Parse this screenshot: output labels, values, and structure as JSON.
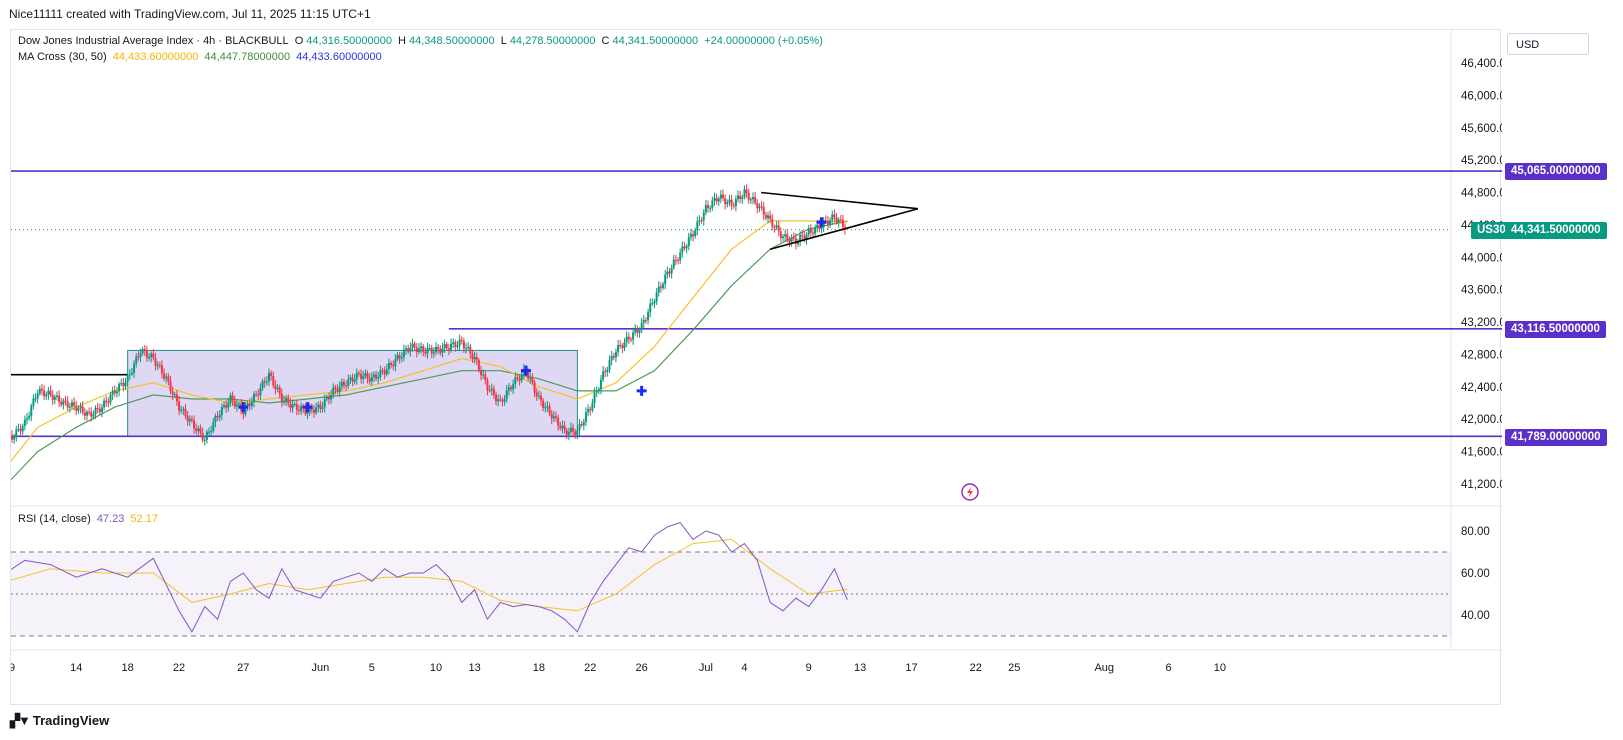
{
  "header": {
    "credit": "Nice11111 created with TradingView.com, Jul 11, 2025 11:15 UTC+1"
  },
  "legend": {
    "symbol_title": "Dow Jones Industrial Average Index · 4h · BLACKBULL",
    "o_label": "O",
    "o_value": "44,316.50000000",
    "h_label": "H",
    "h_value": "44,348.50000000",
    "l_label": "L",
    "l_value": "44,278.50000000",
    "c_label": "C",
    "c_value": "44,341.50000000",
    "change": "+24.00000000 (+0.05%)",
    "ma_title": "MA Cross (30, 50)",
    "ma_v1": "44,433.60000000",
    "ma_v2": "44,447.78000000",
    "ma_v3": "44,433.60000000",
    "rsi_title": "RSI (14, close)",
    "rsi_v1": "47.23",
    "rsi_v2": "52.17"
  },
  "axis": {
    "currency": "USD",
    "price_ticks": [
      "46,400.00000000",
      "46,000.00000000",
      "45,600.00000000",
      "45,200.00000000",
      "44,800.00000000",
      "44,400.00000000",
      "44,000.00000000",
      "43,600.00000000",
      "43,200.00000000",
      "42,800.00000000",
      "42,400.00000000",
      "42,000.00000000",
      "41,600.00000000",
      "41,200.00000000"
    ],
    "price_tick_values": [
      46400,
      46000,
      45600,
      45200,
      44800,
      44400,
      44000,
      43600,
      43200,
      42800,
      42400,
      42000,
      41600,
      41200
    ],
    "rsi_ticks": [
      "80.00",
      "60.00",
      "40.00"
    ],
    "rsi_tick_values": [
      80,
      60,
      40
    ],
    "x_labels": [
      {
        "label": "9",
        "d": -24
      },
      {
        "label": "14",
        "d": -19
      },
      {
        "label": "18",
        "d": -15
      },
      {
        "label": "22",
        "d": -11
      },
      {
        "label": "27",
        "d": -6
      },
      {
        "label": "Jun",
        "d": 0
      },
      {
        "label": "5",
        "d": 4
      },
      {
        "label": "10",
        "d": 9
      },
      {
        "label": "13",
        "d": 12
      },
      {
        "label": "18",
        "d": 17
      },
      {
        "label": "22",
        "d": 21
      },
      {
        "label": "26",
        "d": 25
      },
      {
        "label": "Jul",
        "d": 30
      },
      {
        "label": "4",
        "d": 33
      },
      {
        "label": "9",
        "d": 38
      },
      {
        "label": "13",
        "d": 42
      },
      {
        "label": "17",
        "d": 46
      },
      {
        "label": "22",
        "d": 51
      },
      {
        "label": "25",
        "d": 54
      },
      {
        "label": "Aug",
        "d": 61
      },
      {
        "label": "6",
        "d": 66
      },
      {
        "label": "10",
        "d": 70
      }
    ]
  },
  "price_tags": {
    "resistance": "45,065.00000000",
    "symbol": "US30",
    "last": "44,341.50000000",
    "mid_level": "43,116.50000000",
    "support": "41,789.00000000"
  },
  "levels": {
    "resistance": 45065,
    "last": 44341.5,
    "mid_level": 43116.5,
    "support": 41789
  },
  "colors": {
    "up": "#089981",
    "down": "#f23645",
    "level": "#5b2fc9",
    "ma_fast": "#f7c02a",
    "ma_slow": "#4f9a5a",
    "rsi": "#7e57c2",
    "rsi_ma": "#f7c02a",
    "cross": "#1a2bf2"
  },
  "footer": {
    "brand": "TradingView"
  },
  "chart_data": {
    "type": "candlestick",
    "title": "Dow Jones Industrial Average Index · 4h · BLACKBULL",
    "x_unit": "days from Jun 1, 2025",
    "ylim": [
      41000,
      46600
    ],
    "rsi_ylim": [
      20,
      95
    ],
    "price_series": [
      [
        -25,
        41700
      ],
      [
        -24,
        41780
      ],
      [
        -23,
        41950
      ],
      [
        -22,
        42350
      ],
      [
        -21,
        42300
      ],
      [
        -20,
        42200
      ],
      [
        -19,
        42150
      ],
      [
        -18,
        42050
      ],
      [
        -17,
        42150
      ],
      [
        -16,
        42350
      ],
      [
        -15,
        42500
      ],
      [
        -14,
        42850
      ],
      [
        -13,
        42750
      ],
      [
        -12,
        42500
      ],
      [
        -11,
        42150
      ],
      [
        -10,
        41950
      ],
      [
        -9,
        41750
      ],
      [
        -8,
        42050
      ],
      [
        -7,
        42250
      ],
      [
        -6,
        42100
      ],
      [
        -5,
        42300
      ],
      [
        -4,
        42550
      ],
      [
        -3,
        42250
      ],
      [
        -2,
        42150
      ],
      [
        -1,
        42100
      ],
      [
        0,
        42150
      ],
      [
        1,
        42350
      ],
      [
        2,
        42450
      ],
      [
        3,
        42550
      ],
      [
        4,
        42500
      ],
      [
        5,
        42600
      ],
      [
        6,
        42750
      ],
      [
        7,
        42900
      ],
      [
        8,
        42850
      ],
      [
        9,
        42850
      ],
      [
        10,
        42900
      ],
      [
        11,
        42950
      ],
      [
        12,
        42750
      ],
      [
        13,
        42400
      ],
      [
        14,
        42200
      ],
      [
        15,
        42450
      ],
      [
        16,
        42600
      ],
      [
        17,
        42250
      ],
      [
        18,
        42050
      ],
      [
        19,
        41850
      ],
      [
        20,
        41850
      ],
      [
        21,
        42150
      ],
      [
        22,
        42550
      ],
      [
        23,
        42850
      ],
      [
        24,
        43000
      ],
      [
        25,
        43150
      ],
      [
        26,
        43500
      ],
      [
        27,
        43800
      ],
      [
        28,
        44050
      ],
      [
        29,
        44300
      ],
      [
        30,
        44600
      ],
      [
        31,
        44750
      ],
      [
        32,
        44650
      ],
      [
        33,
        44800
      ],
      [
        34,
        44650
      ],
      [
        35,
        44450
      ],
      [
        36,
        44250
      ],
      [
        37,
        44200
      ],
      [
        38,
        44300
      ],
      [
        39,
        44400
      ],
      [
        40,
        44500
      ],
      [
        41,
        44350
      ]
    ],
    "ma_fast": [
      [
        -25,
        41300
      ],
      [
        -22,
        41900
      ],
      [
        -19,
        42150
      ],
      [
        -16,
        42350
      ],
      [
        -13,
        42450
      ],
      [
        -10,
        42300
      ],
      [
        -7,
        42200
      ],
      [
        -4,
        42250
      ],
      [
        -1,
        42300
      ],
      [
        2,
        42350
      ],
      [
        5,
        42450
      ],
      [
        8,
        42600
      ],
      [
        11,
        42750
      ],
      [
        14,
        42650
      ],
      [
        17,
        42400
      ],
      [
        20,
        42250
      ],
      [
        23,
        42450
      ],
      [
        26,
        42900
      ],
      [
        29,
        43500
      ],
      [
        32,
        44100
      ],
      [
        35,
        44450
      ],
      [
        38,
        44450
      ],
      [
        41,
        44433.6
      ]
    ],
    "ma_slow": [
      [
        -25,
        41100
      ],
      [
        -22,
        41600
      ],
      [
        -19,
        41900
      ],
      [
        -16,
        42150
      ],
      [
        -13,
        42300
      ],
      [
        -10,
        42250
      ],
      [
        -7,
        42250
      ],
      [
        -4,
        42200
      ],
      [
        -1,
        42250
      ],
      [
        2,
        42300
      ],
      [
        5,
        42400
      ],
      [
        8,
        42500
      ],
      [
        11,
        42600
      ],
      [
        14,
        42600
      ],
      [
        17,
        42500
      ],
      [
        20,
        42350
      ],
      [
        23,
        42350
      ],
      [
        26,
        42600
      ],
      [
        29,
        43100
      ],
      [
        32,
        43650
      ],
      [
        35,
        44100
      ],
      [
        38,
        44350
      ],
      [
        41,
        44447.78
      ]
    ],
    "rsi": [
      [
        -25,
        58
      ],
      [
        -23,
        66
      ],
      [
        -21,
        64
      ],
      [
        -19,
        58
      ],
      [
        -17,
        62
      ],
      [
        -15,
        58
      ],
      [
        -13,
        67
      ],
      [
        -11,
        42
      ],
      [
        -10,
        32
      ],
      [
        -9,
        44
      ],
      [
        -8,
        38
      ],
      [
        -7,
        56
      ],
      [
        -6,
        60
      ],
      [
        -5,
        52
      ],
      [
        -4,
        48
      ],
      [
        -3,
        62
      ],
      [
        -2,
        52
      ],
      [
        -1,
        50
      ],
      [
        0,
        48
      ],
      [
        1,
        56
      ],
      [
        2,
        58
      ],
      [
        3,
        60
      ],
      [
        4,
        56
      ],
      [
        5,
        62
      ],
      [
        6,
        58
      ],
      [
        7,
        60
      ],
      [
        8,
        60
      ],
      [
        9,
        64
      ],
      [
        10,
        58
      ],
      [
        11,
        46
      ],
      [
        12,
        52
      ],
      [
        13,
        38
      ],
      [
        14,
        46
      ],
      [
        15,
        44
      ],
      [
        16,
        45
      ],
      [
        17,
        44
      ],
      [
        18,
        42
      ],
      [
        19,
        38
      ],
      [
        20,
        32
      ],
      [
        21,
        46
      ],
      [
        22,
        56
      ],
      [
        23,
        64
      ],
      [
        24,
        72
      ],
      [
        25,
        70
      ],
      [
        26,
        78
      ],
      [
        27,
        82
      ],
      [
        28,
        84
      ],
      [
        29,
        76
      ],
      [
        30,
        80
      ],
      [
        31,
        78
      ],
      [
        32,
        70
      ],
      [
        33,
        74
      ],
      [
        34,
        66
      ],
      [
        35,
        46
      ],
      [
        36,
        42
      ],
      [
        37,
        48
      ],
      [
        38,
        44
      ],
      [
        39,
        52
      ],
      [
        40,
        62
      ],
      [
        41,
        47.23
      ]
    ],
    "rsi_ma": [
      [
        -25,
        55
      ],
      [
        -21,
        62
      ],
      [
        -17,
        60
      ],
      [
        -13,
        60
      ],
      [
        -10,
        46
      ],
      [
        -7,
        50
      ],
      [
        -4,
        55
      ],
      [
        -1,
        52
      ],
      [
        2,
        55
      ],
      [
        5,
        58
      ],
      [
        8,
        58
      ],
      [
        11,
        56
      ],
      [
        14,
        47
      ],
      [
        17,
        44
      ],
      [
        20,
        42
      ],
      [
        23,
        50
      ],
      [
        26,
        64
      ],
      [
        29,
        74
      ],
      [
        32,
        76
      ],
      [
        35,
        62
      ],
      [
        38,
        50
      ],
      [
        41,
        52.17
      ]
    ],
    "rsi_levels": [
      70,
      50,
      30
    ],
    "triangle": {
      "upper": [
        [
          34.3,
          44800
        ],
        [
          46.5,
          44600
        ]
      ],
      "lower": [
        [
          35,
          44100
        ],
        [
          46.5,
          44600
        ]
      ]
    },
    "range_box": {
      "x": [
        -15,
        20
      ],
      "y": [
        41789,
        42850
      ]
    },
    "breakout_line": {
      "x": [
        -25,
        -15
      ],
      "y": 42550
    },
    "mid_level_start": 10,
    "ma_crosses": [
      [
        -6,
        42150
      ],
      [
        -1,
        42150
      ],
      [
        16,
        42600
      ],
      [
        25,
        42350
      ],
      [
        39,
        44433.6
      ]
    ]
  }
}
